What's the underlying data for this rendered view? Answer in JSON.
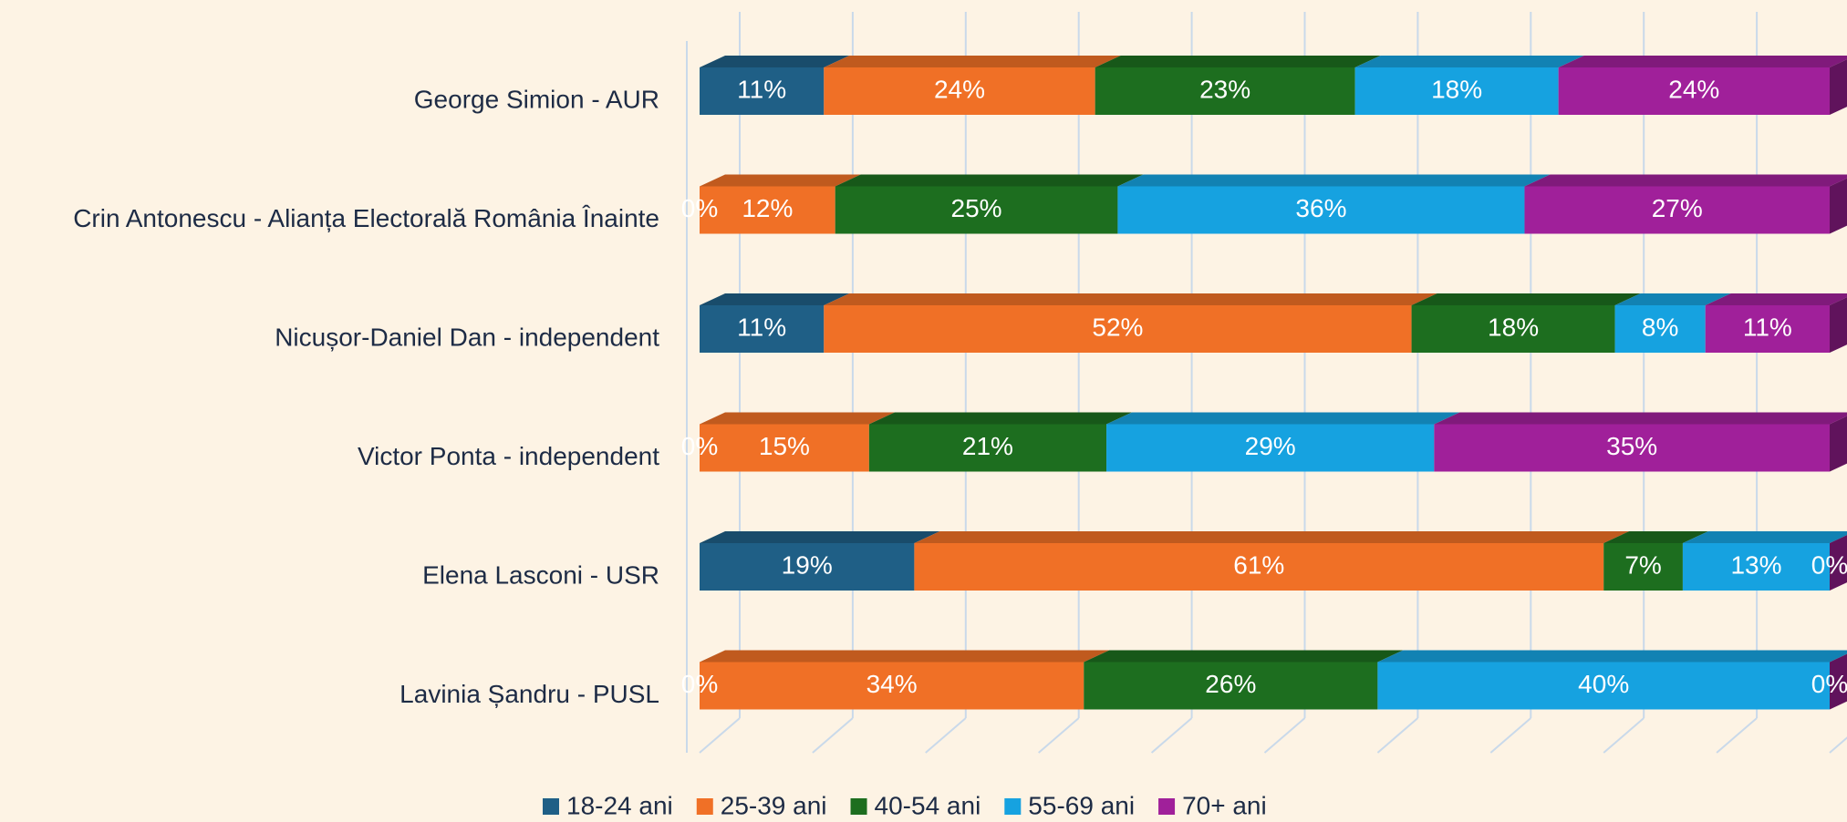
{
  "chart_data": {
    "type": "bar",
    "orientation": "horizontal",
    "stacked": true,
    "categories": [
      "George Simion - AUR",
      "Crin Antonescu - Alianța Electorală România Înainte",
      "Nicușor-Daniel Dan - independent",
      "Victor Ponta - independent",
      "Elena Lasconi - USR",
      "Lavinia Șandru - PUSL"
    ],
    "series": [
      {
        "name": "18-24 ani",
        "color": "#1f5f86",
        "values": [
          11,
          0,
          11,
          0,
          19,
          0
        ],
        "value_labels": [
          "11%",
          "0%",
          "11%",
          "0%",
          "19%",
          "0%"
        ]
      },
      {
        "name": "25-39 ani",
        "color": "#f07026",
        "values": [
          24,
          12,
          52,
          15,
          61,
          34
        ],
        "value_labels": [
          "24%",
          "12%",
          "52%",
          "15%",
          "61%",
          "34%"
        ]
      },
      {
        "name": "40-54 ani",
        "color": "#1d6e1f",
        "values": [
          23,
          25,
          18,
          21,
          7,
          26
        ],
        "value_labels": [
          "23%",
          "25%",
          "18%",
          "21%",
          "7%",
          "26%"
        ]
      },
      {
        "name": "55-69 ani",
        "color": "#16a2e0",
        "values": [
          18,
          36,
          8,
          29,
          13,
          40
        ],
        "value_labels": [
          "18%",
          "36%",
          "8%",
          "29%",
          "13%",
          "40%"
        ]
      },
      {
        "name": "70+ ani",
        "color": "#a0209a",
        "values": [
          24,
          27,
          11,
          35,
          0,
          0
        ],
        "value_labels": [
          "24%",
          "27%",
          "11%",
          "35%",
          "0%",
          "0%"
        ]
      }
    ],
    "xlim": [
      0,
      100
    ],
    "xticks": [
      0,
      10,
      20,
      30,
      40,
      50,
      60,
      70,
      80,
      90,
      100
    ],
    "grid": true,
    "legend": "bottom"
  }
}
